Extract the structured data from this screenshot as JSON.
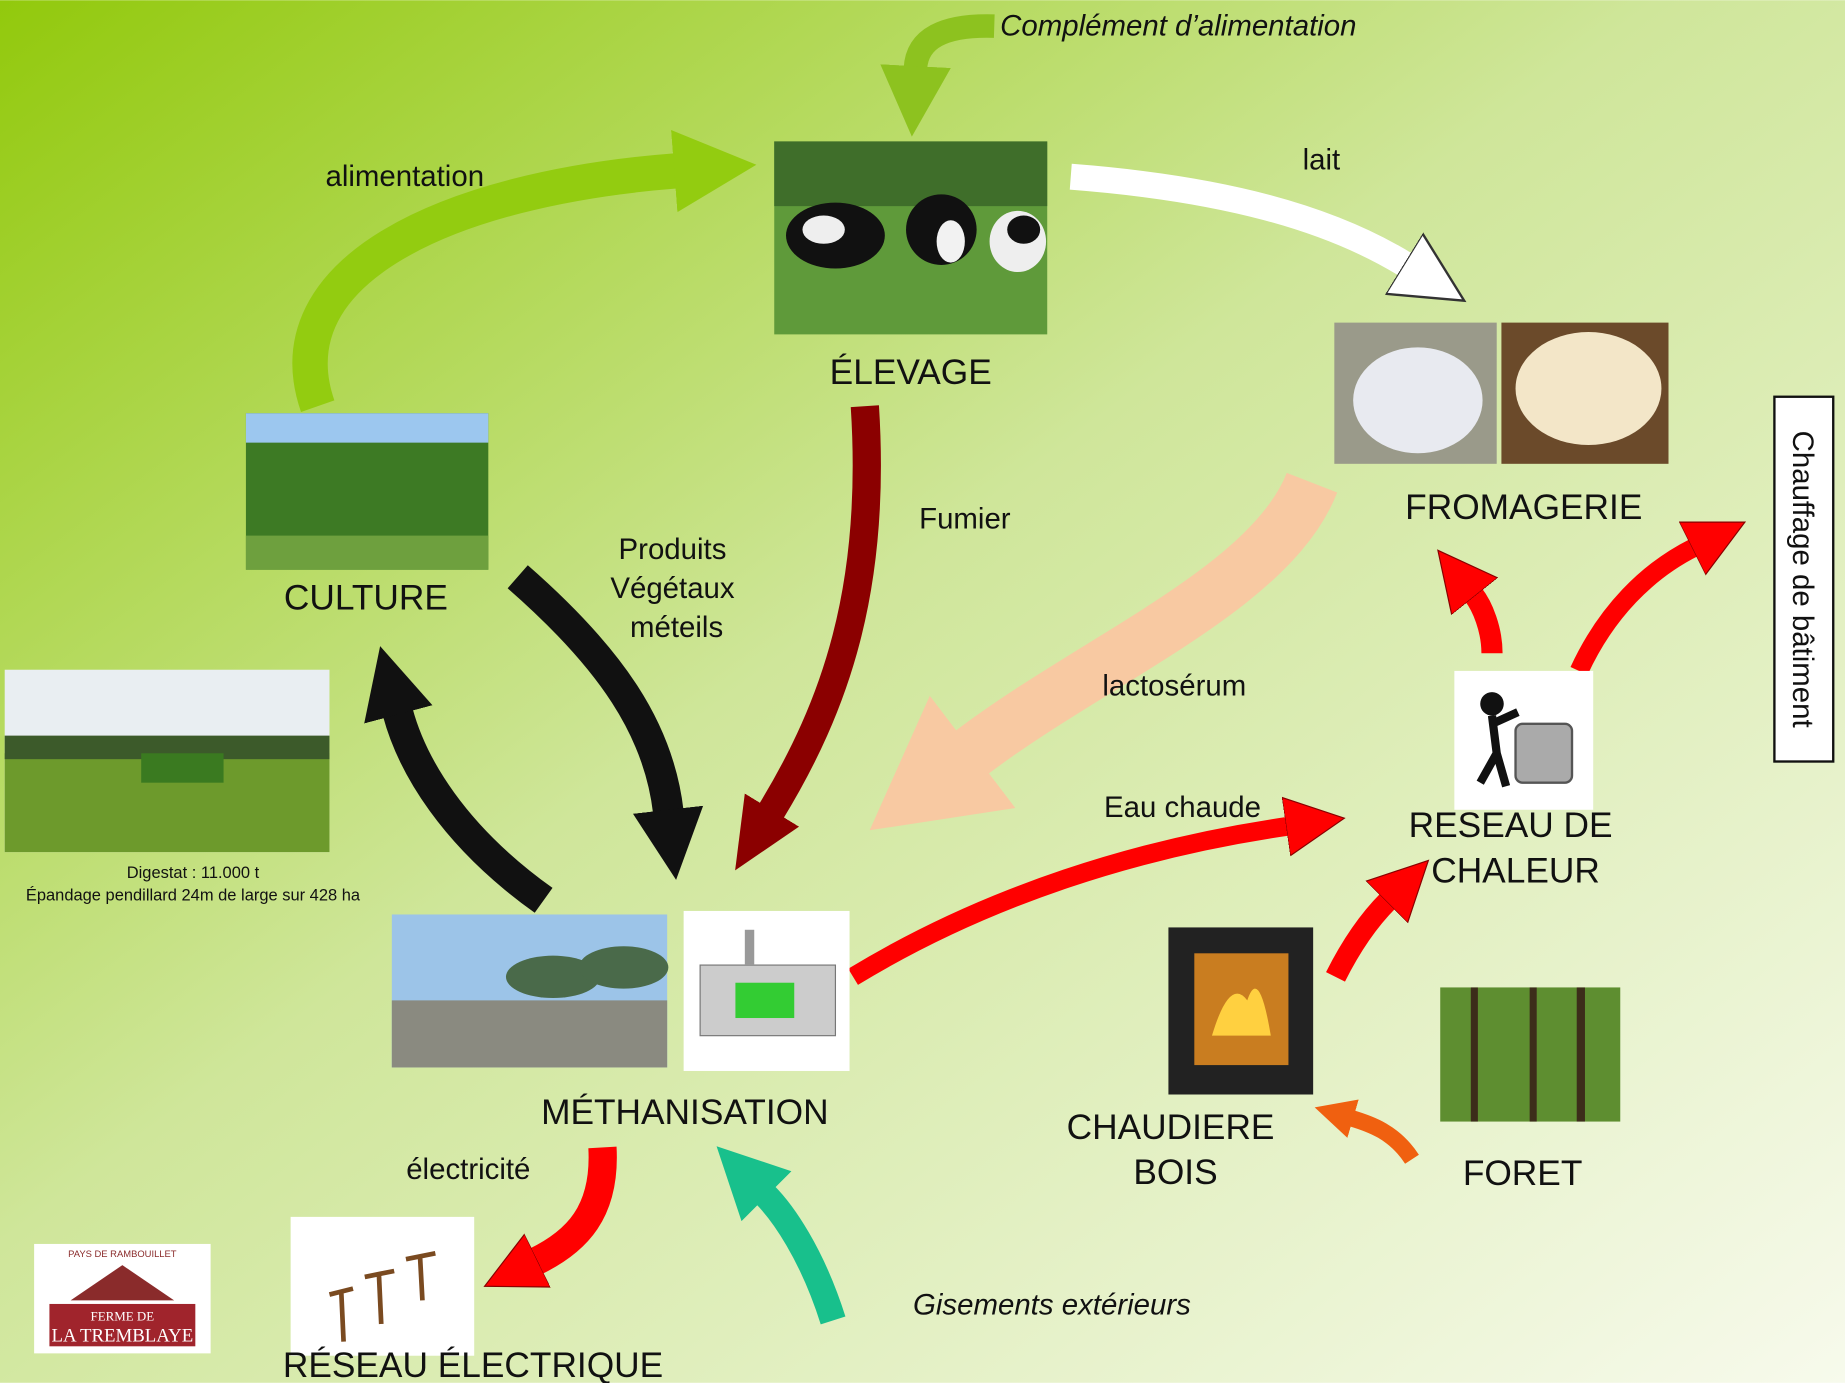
{
  "nodes": [
    {
      "id": "elevage",
      "label": "ÉLEVAGE"
    },
    {
      "id": "fromagerie",
      "label": "FROMAGERIE"
    },
    {
      "id": "culture",
      "label": "CULTURE"
    },
    {
      "id": "reseau_chaleur",
      "label": [
        "RESEAU DE",
        "CHALEUR"
      ]
    },
    {
      "id": "methanisation",
      "label": "MÉTHANISATION"
    },
    {
      "id": "chaudiere",
      "label": [
        "CHAUDIERE",
        "BOIS"
      ]
    },
    {
      "id": "foret",
      "label": "FORET"
    },
    {
      "id": "reseau_electrique",
      "label": "RÉSEAU ÉLECTRIQUE"
    },
    {
      "id": "chauffage",
      "label": "Chauffage de bâtiment"
    }
  ],
  "flows": [
    {
      "label": "Complément d’alimentation"
    },
    {
      "label": "alimentation"
    },
    {
      "label": "lait"
    },
    {
      "label": [
        "Produits",
        "Végétaux",
        "méteils"
      ]
    },
    {
      "label": "Fumier"
    },
    {
      "label": "lactosérum"
    },
    {
      "label": "Eau chaude"
    },
    {
      "label": "électricité"
    },
    {
      "label": "Gisements extérieurs"
    }
  ],
  "caption": [
    "Digestat  : 11.000 t",
    "Épandage pendillard 24m de large sur 428 ha"
  ],
  "logo": {
    "top": "PAYS DE RAMBOUILLET",
    "line1": "FERME DE",
    "line2": "LA TREMBLAYE"
  }
}
